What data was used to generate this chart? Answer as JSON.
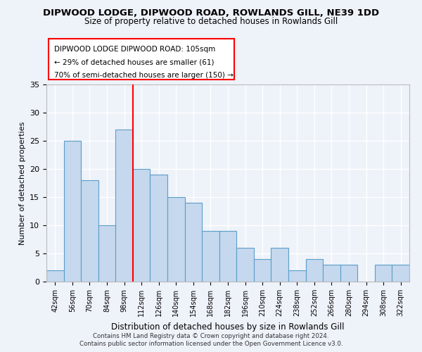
{
  "title1": "DIPWOOD LODGE, DIPWOOD ROAD, ROWLANDS GILL, NE39 1DD",
  "title2": "Size of property relative to detached houses in Rowlands Gill",
  "xlabel": "Distribution of detached houses by size in Rowlands Gill",
  "ylabel": "Number of detached properties",
  "categories": [
    "42sqm",
    "56sqm",
    "70sqm",
    "84sqm",
    "98sqm",
    "112sqm",
    "126sqm",
    "140sqm",
    "154sqm",
    "168sqm",
    "182sqm",
    "196sqm",
    "210sqm",
    "224sqm",
    "238sqm",
    "252sqm",
    "266sqm",
    "280sqm",
    "294sqm",
    "308sqm",
    "322sqm"
  ],
  "values": [
    2,
    25,
    18,
    10,
    27,
    20,
    19,
    15,
    14,
    9,
    9,
    6,
    4,
    6,
    2,
    4,
    3,
    3,
    0,
    3,
    3
  ],
  "bar_color": "#c5d8ed",
  "bar_edge_color": "#5a9ec9",
  "vline_x": 4.5,
  "vline_color": "red",
  "ylim": [
    0,
    35
  ],
  "yticks": [
    0,
    5,
    10,
    15,
    20,
    25,
    30,
    35
  ],
  "annotation_title": "DIPWOOD LODGE DIPWOOD ROAD: 105sqm",
  "annotation_line1": "← 29% of detached houses are smaller (61)",
  "annotation_line2": "70% of semi-detached houses are larger (150) →",
  "footer1": "Contains HM Land Registry data © Crown copyright and database right 2024.",
  "footer2": "Contains public sector information licensed under the Open Government Licence v3.0.",
  "background_color": "#eef2f9",
  "plot_bg_color": "#eef2f9",
  "grid_color": "#ffffff"
}
